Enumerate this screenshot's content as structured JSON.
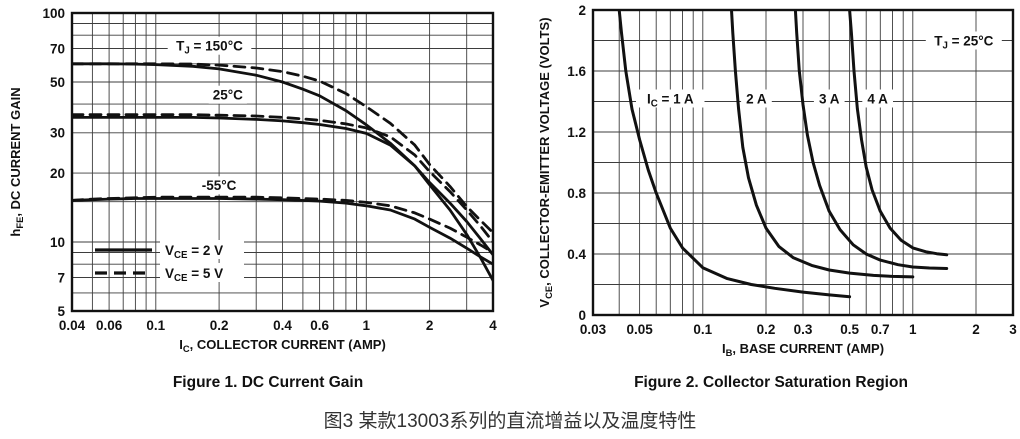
{
  "page": {
    "caption": "图3 某款13003系列的直流增益以及温度特性"
  },
  "chart_data": [
    {
      "type": "line",
      "title": "Figure 1. DC Current Gain",
      "xlabel": "I_{C}, COLLECTOR CURRENT (AMP)",
      "ylabel": "h_{FE}, DC CURRENT GAIN",
      "xscale": "log",
      "yscale": "log",
      "xlim": [
        0.04,
        4
      ],
      "ylim": [
        5,
        100
      ],
      "grid": true,
      "xtick_labels": [
        "0.04",
        "0.06",
        "0.1",
        "0.2",
        "0.4",
        "0.6",
        "1",
        "2",
        "4"
      ],
      "ytick_labels": [
        "100",
        "70",
        "50",
        "30",
        "20",
        "10",
        "7",
        "5"
      ],
      "xgrid": [
        0.04,
        0.05,
        0.06,
        0.07,
        0.08,
        0.09,
        0.1,
        0.2,
        0.3,
        0.4,
        0.5,
        0.6,
        0.7,
        0.8,
        0.9,
        1,
        2,
        3,
        4
      ],
      "ygrid": [
        5,
        6,
        7,
        8,
        9,
        10,
        15,
        20,
        30,
        40,
        50,
        60,
        70,
        80,
        90,
        100
      ],
      "legend": {
        "position": "lower-left",
        "entries": [
          {
            "style": "solid",
            "label": "V_{CE} = 2 V"
          },
          {
            "style": "dashed",
            "label": "V_{CE} = 5 V"
          }
        ]
      },
      "annotations": [
        {
          "text": "T_{J} = 150°C",
          "x": 0.18,
          "y": 72
        },
        {
          "text": "25°C",
          "x": 0.22,
          "y": 44
        },
        {
          "text": "-55°C",
          "x": 0.2,
          "y": 17.7
        }
      ],
      "x": [
        0.04,
        0.05,
        0.06,
        0.08,
        0.1,
        0.15,
        0.2,
        0.3,
        0.4,
        0.5,
        0.6,
        0.8,
        1,
        1.3,
        1.7,
        2,
        2.5,
        3,
        3.5,
        4
      ],
      "series": [
        {
          "name": "TJ=150°C, VCE=2V",
          "style": "solid",
          "values": [
            60,
            60,
            60,
            59.8,
            59.5,
            58.5,
            57,
            53.5,
            50,
            46.5,
            43.5,
            37.5,
            32.5,
            27,
            21.5,
            17.8,
            13.8,
            10.8,
            8.5,
            6.8
          ]
        },
        {
          "name": "TJ=25°C, VCE=2V",
          "style": "solid",
          "values": [
            35,
            35,
            35,
            35,
            35,
            35,
            34.8,
            34.3,
            33.8,
            33.2,
            32.6,
            31.3,
            29.8,
            26.5,
            21.5,
            18.2,
            14.8,
            12.3,
            10.3,
            8.8
          ]
        },
        {
          "name": "TJ=-55°C, VCE=2V",
          "style": "solid",
          "values": [
            15.2,
            15.3,
            15.4,
            15.5,
            15.5,
            15.5,
            15.5,
            15.4,
            15.3,
            15.2,
            15.1,
            14.8,
            14.4,
            13.8,
            12.6,
            11.6,
            10.4,
            9.4,
            8.6,
            8
          ]
        },
        {
          "name": "TJ=150°C, VCE=5V",
          "style": "dashed",
          "values": [
            60,
            60,
            60,
            60,
            60,
            59.8,
            59.2,
            57.5,
            55.5,
            53,
            50.5,
            44.5,
            39,
            33,
            26.5,
            21.8,
            17.5,
            14.3,
            12.4,
            11
          ]
        },
        {
          "name": "TJ=25°C, VCE=5V",
          "style": "dashed",
          "values": [
            36,
            36,
            36,
            36,
            36,
            36,
            35.8,
            35.5,
            35,
            34.5,
            34,
            32.8,
            31.5,
            28.8,
            24,
            20.3,
            16.6,
            13.8,
            11.7,
            10
          ]
        },
        {
          "name": "TJ=-55°C, VCE=5V",
          "style": "dashed",
          "values": [
            15.2,
            15.4,
            15.5,
            15.6,
            15.7,
            15.7,
            15.7,
            15.7,
            15.6,
            15.5,
            15.4,
            15.2,
            14.9,
            14.4,
            13.4,
            12.6,
            11.5,
            10.5,
            9.7,
            9
          ]
        }
      ]
    },
    {
      "type": "line",
      "title": "Figure 2. Collector Saturation Region",
      "xlabel": "I_{B}, BASE CURRENT (AMP)",
      "ylabel": "V_{CE}, COLLECTOR-EMITTER VOLTAGE (VOLTS)",
      "xscale": "log",
      "yscale": "linear",
      "xlim": [
        0.03,
        3
      ],
      "ylim": [
        0,
        2
      ],
      "grid": true,
      "xtick_labels": [
        "0.03",
        "0.05",
        "0.1",
        "0.2",
        "0.3",
        "0.5",
        "0.7",
        "1",
        "2",
        "3"
      ],
      "ytick_labels": [
        "2",
        "1.6",
        "1.2",
        "0.8",
        "0.4",
        "0"
      ],
      "xgrid": [
        0.03,
        0.04,
        0.05,
        0.06,
        0.07,
        0.08,
        0.09,
        0.1,
        0.2,
        0.3,
        0.4,
        0.5,
        0.6,
        0.7,
        0.8,
        0.9,
        1,
        2,
        3
      ],
      "ygrid": [
        0,
        0.2,
        0.4,
        0.6,
        0.8,
        1,
        1.2,
        1.4,
        1.6,
        1.8,
        2
      ],
      "annotations": [
        {
          "text": "I_{C} = 1 A",
          "x": 0.07,
          "y": 1.42
        },
        {
          "text": "2 A",
          "x": 0.18,
          "y": 1.42
        },
        {
          "text": "3 A",
          "x": 0.4,
          "y": 1.42
        },
        {
          "text": "4 A",
          "x": 0.68,
          "y": 1.42
        },
        {
          "text": "T_{J} = 25°C",
          "x": 1.75,
          "y": 1.8
        }
      ],
      "series": [
        {
          "name": "IC = 1 A",
          "style": "solid",
          "x": [
            0.04,
            0.041,
            0.043,
            0.046,
            0.05,
            0.055,
            0.06,
            0.07,
            0.08,
            0.1,
            0.13,
            0.17,
            0.22,
            0.3,
            0.4,
            0.5
          ],
          "y": [
            2,
            1.85,
            1.6,
            1.35,
            1.15,
            0.95,
            0.8,
            0.57,
            0.44,
            0.31,
            0.24,
            0.2,
            0.175,
            0.15,
            0.132,
            0.12
          ]
        },
        {
          "name": "IC = 2 A",
          "style": "solid",
          "x": [
            0.137,
            0.139,
            0.143,
            0.148,
            0.155,
            0.165,
            0.18,
            0.2,
            0.23,
            0.27,
            0.33,
            0.4,
            0.5,
            0.65,
            0.8,
            1.0
          ],
          "y": [
            2,
            1.85,
            1.6,
            1.35,
            1.1,
            0.9,
            0.72,
            0.57,
            0.45,
            0.375,
            0.325,
            0.295,
            0.275,
            0.26,
            0.253,
            0.25
          ]
        },
        {
          "name": "IC = 3 A",
          "style": "solid",
          "x": [
            0.276,
            0.28,
            0.288,
            0.3,
            0.315,
            0.335,
            0.36,
            0.4,
            0.45,
            0.52,
            0.6,
            0.7,
            0.85,
            1.0,
            1.2,
            1.45
          ],
          "y": [
            2,
            1.85,
            1.6,
            1.38,
            1.18,
            1.0,
            0.85,
            0.68,
            0.56,
            0.46,
            0.4,
            0.36,
            0.33,
            0.315,
            0.308,
            0.305
          ]
        },
        {
          "name": "IC = 4 A",
          "style": "solid",
          "x": [
            0.5,
            0.51,
            0.525,
            0.545,
            0.57,
            0.6,
            0.64,
            0.7,
            0.78,
            0.88,
            1.0,
            1.15,
            1.3,
            1.45
          ],
          "y": [
            2,
            1.85,
            1.6,
            1.35,
            1.15,
            0.97,
            0.82,
            0.68,
            0.57,
            0.49,
            0.44,
            0.415,
            0.402,
            0.395
          ]
        }
      ]
    }
  ]
}
